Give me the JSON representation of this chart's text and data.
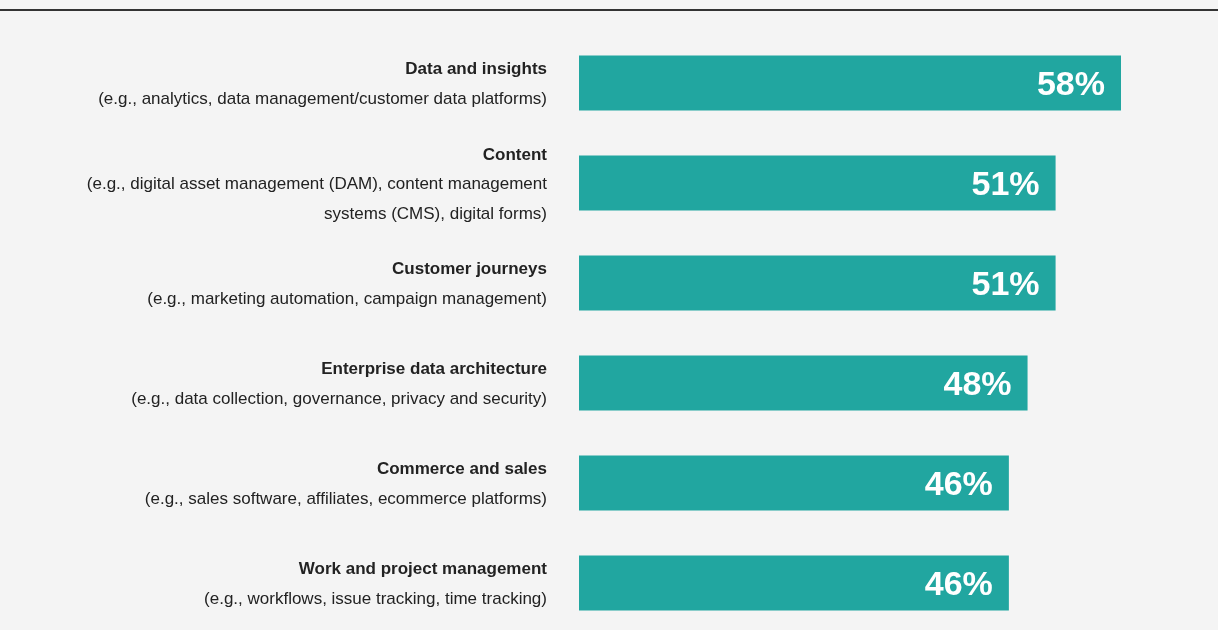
{
  "chart_data": {
    "type": "bar",
    "orientation": "horizontal",
    "categories": [
      "Data and insights\n(e.g., analytics, data management/customer data platforms)",
      "Content\n(e.g., digital asset management (DAM), content management systems (CMS), digital forms)",
      "Customer journeys\n(e.g., marketing automation, campaign management)",
      "Enterprise data architecture\n(e.g., data collection, governance, privacy and security)",
      "Commerce and sales\n(e.g., sales software, affiliates, ecommerce platforms)",
      "Work and project management\n(e.g., workflows, issue tracking, time tracking)"
    ],
    "values": [
      58,
      51,
      51,
      48,
      46,
      46
    ],
    "value_labels": [
      "58%",
      "51%",
      "51%",
      "48%",
      "46%",
      "46%"
    ],
    "color": "#21a6a0"
  }
}
